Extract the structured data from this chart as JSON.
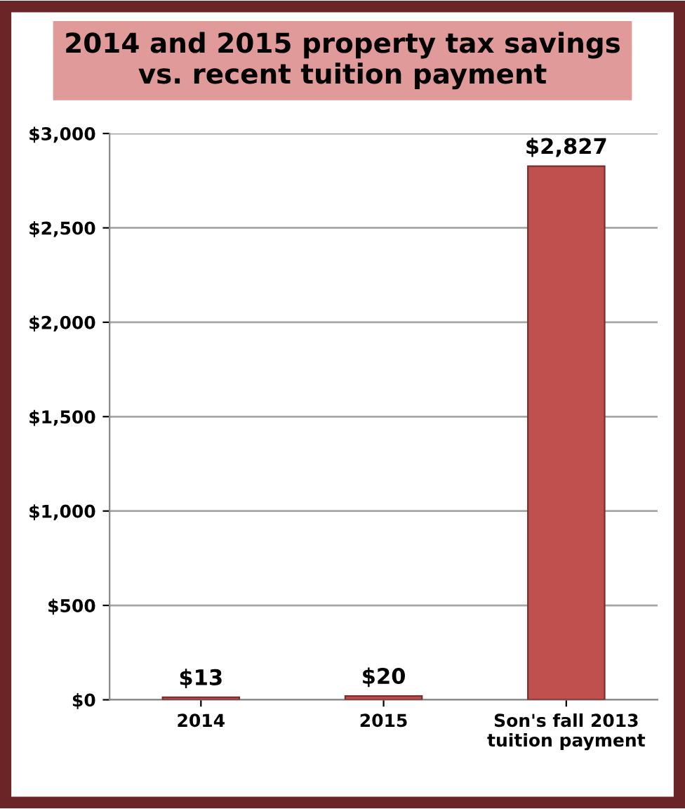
{
  "chart_data": {
    "type": "bar",
    "title": "2014 and 2015 property tax savings\nvs. recent tuition payment",
    "categories": [
      "2014",
      "2015",
      "Son's fall 2013\ntuition payment"
    ],
    "values": [
      13,
      20,
      2827
    ],
    "value_labels": [
      "$13",
      "$20",
      "$2,827"
    ],
    "color": "#c0504d",
    "ylim": [
      0,
      3000
    ],
    "yticks": [
      {
        "value": 0,
        "label": "$0"
      },
      {
        "value": 500,
        "label": "$500"
      },
      {
        "value": 1000,
        "label": "$1,000"
      },
      {
        "value": 1500,
        "label": "$1,500"
      },
      {
        "value": 2000,
        "label": "$2,000"
      },
      {
        "value": 2500,
        "label": "$2,500"
      },
      {
        "value": 3000,
        "label": "$3,000"
      }
    ],
    "grid": "y"
  }
}
